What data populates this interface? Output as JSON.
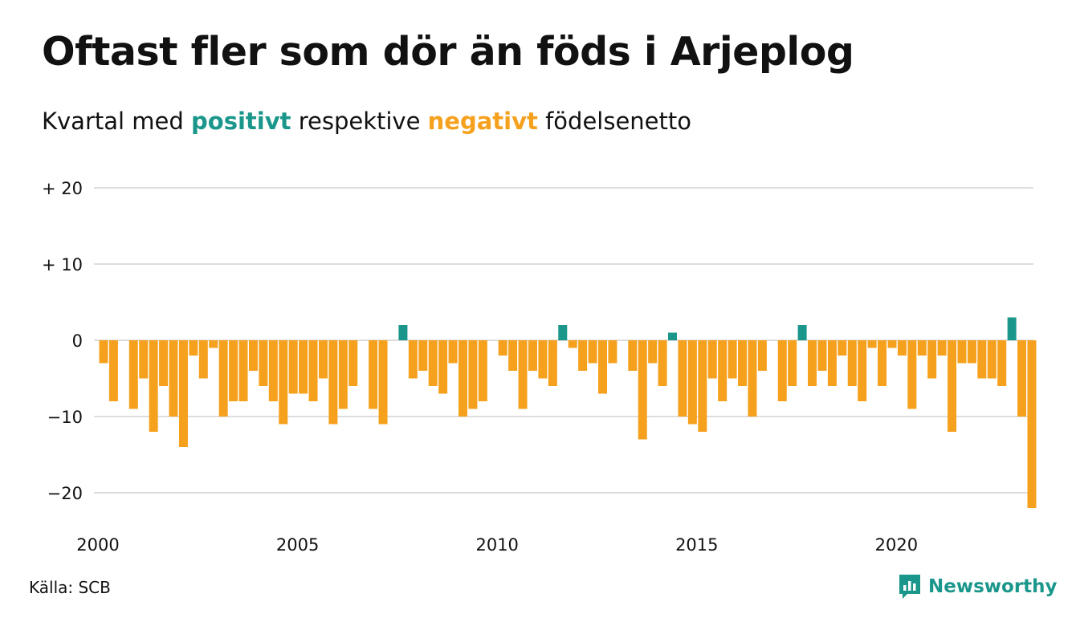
{
  "title": "Oftast fler som dör än föds i Arjeplog",
  "subtitle": {
    "prefix": "Kvartal med ",
    "positive": "positivt",
    "middle": " respektive ",
    "negative": "negativt",
    "suffix": " födelsenetto"
  },
  "source": "Källa: SCB",
  "brand": "Newsworthy",
  "colors": {
    "positive": "#1a968a",
    "negative": "#f6a11e",
    "grid": "#dddddd",
    "text": "#111111"
  },
  "chart_data": {
    "type": "bar",
    "start_year": 2000,
    "period": "quarter",
    "y_ticks": [
      {
        "value": 20,
        "label": "+ 20"
      },
      {
        "value": 10,
        "label": "+ 10"
      },
      {
        "value": 0,
        "label": "0"
      },
      {
        "value": -10,
        "label": "−10"
      },
      {
        "value": -20,
        "label": "−20"
      }
    ],
    "x_ticks": [
      "2000",
      "2005",
      "2010",
      "2015",
      "2020"
    ],
    "ylim": [
      -23,
      21
    ],
    "grid": true,
    "values": [
      -3,
      -8,
      0,
      -9,
      -5,
      -12,
      -6,
      -10,
      -14,
      -2,
      -5,
      -1,
      -10,
      -8,
      -8,
      -4,
      -6,
      -8,
      -11,
      -7,
      -7,
      -8,
      -5,
      -11,
      -9,
      -6,
      0,
      -9,
      -11,
      0,
      2,
      -5,
      -4,
      -6,
      -7,
      -3,
      -10,
      -9,
      -8,
      0,
      -2,
      -4,
      -9,
      -4,
      -5,
      -6,
      2,
      -1,
      -4,
      -3,
      -7,
      -3,
      0,
      -4,
      -13,
      -3,
      -6,
      1,
      -10,
      -11,
      -12,
      -5,
      -8,
      -5,
      -6,
      -10,
      -4,
      0,
      -8,
      -6,
      2,
      -6,
      -4,
      -6,
      -2,
      -6,
      -8,
      -1,
      -6,
      -1,
      -2,
      -9,
      -2,
      -5,
      -2,
      -12,
      -3,
      -3,
      -5,
      -5,
      -6,
      3,
      -10,
      -22
    ]
  }
}
